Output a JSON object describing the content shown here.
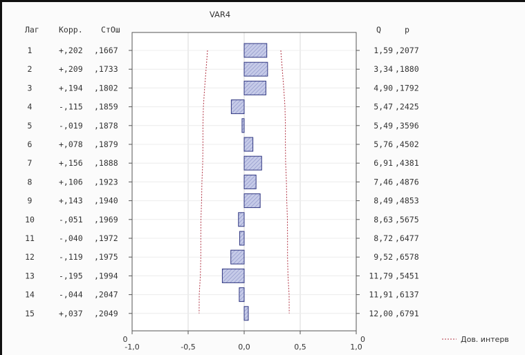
{
  "chart_data": {
    "type": "bar",
    "orientation": "horizontal",
    "title": "VAR4",
    "headers": {
      "lag": "Лаг",
      "corr": "Корр.",
      "se": "СтОш",
      "q": "Q",
      "p": "p"
    },
    "rows": [
      {
        "lag": "1",
        "corr_label": "+,202",
        "se_label": ",1667",
        "q_label": "1,59",
        "p_label": ",2077",
        "value": 0.202,
        "conf": 0.327
      },
      {
        "lag": "2",
        "corr_label": "+,209",
        "se_label": ",1733",
        "q_label": "3,34",
        "p_label": ",1880",
        "value": 0.209,
        "conf": 0.34
      },
      {
        "lag": "3",
        "corr_label": "+,194",
        "se_label": ",1802",
        "q_label": "4,90",
        "p_label": ",1792",
        "value": 0.194,
        "conf": 0.353
      },
      {
        "lag": "4",
        "corr_label": "-,115",
        "se_label": ",1859",
        "q_label": "5,47",
        "p_label": ",2425",
        "value": -0.115,
        "conf": 0.364
      },
      {
        "lag": "5",
        "corr_label": "-,019",
        "se_label": ",1878",
        "q_label": "5,49",
        "p_label": ",3596",
        "value": -0.019,
        "conf": 0.368
      },
      {
        "lag": "6",
        "corr_label": "+,078",
        "se_label": ",1879",
        "q_label": "5,76",
        "p_label": ",4502",
        "value": 0.078,
        "conf": 0.368
      },
      {
        "lag": "7",
        "corr_label": "+,156",
        "se_label": ",1888",
        "q_label": "6,91",
        "p_label": ",4381",
        "value": 0.156,
        "conf": 0.37
      },
      {
        "lag": "8",
        "corr_label": "+,106",
        "se_label": ",1923",
        "q_label": "7,46",
        "p_label": ",4876",
        "value": 0.106,
        "conf": 0.377
      },
      {
        "lag": "9",
        "corr_label": "+,143",
        "se_label": ",1940",
        "q_label": "8,49",
        "p_label": ",4853",
        "value": 0.143,
        "conf": 0.38
      },
      {
        "lag": "10",
        "corr_label": "-,051",
        "se_label": ",1969",
        "q_label": "8,63",
        "p_label": ",5675",
        "value": -0.051,
        "conf": 0.386
      },
      {
        "lag": "11",
        "corr_label": "-,040",
        "se_label": ",1972",
        "q_label": "8,72",
        "p_label": ",6477",
        "value": -0.04,
        "conf": 0.387
      },
      {
        "lag": "12",
        "corr_label": "-,119",
        "se_label": ",1975",
        "q_label": "9,52",
        "p_label": ",6578",
        "value": -0.119,
        "conf": 0.387
      },
      {
        "lag": "13",
        "corr_label": "-,195",
        "se_label": ",1994",
        "q_label": "11,79",
        "p_label": ",5451",
        "value": -0.195,
        "conf": 0.391
      },
      {
        "lag": "14",
        "corr_label": "-,044",
        "se_label": ",2047",
        "q_label": "11,91",
        "p_label": ",6137",
        "value": -0.044,
        "conf": 0.401
      },
      {
        "lag": "15",
        "corr_label": "+,037",
        "se_label": ",2049",
        "q_label": "12,00",
        "p_label": ",6791",
        "value": 0.037,
        "conf": 0.402
      }
    ],
    "x_ticks": [
      "-1,0",
      "-0,5",
      "0,0",
      "0,5",
      "1,0"
    ],
    "x_tick_values": [
      -1.0,
      -0.5,
      0.0,
      0.5,
      1.0
    ],
    "xlim": [
      -1.0,
      1.0
    ],
    "bottom_zero_left": "0",
    "bottom_zero_right": "0",
    "legend": {
      "label": "Дов. интерв",
      "placement": "bottom-right"
    },
    "grid": true,
    "colors": {
      "bar_fill": "#b9bfe0",
      "bar_stroke": "#2e3580",
      "conf_line": "#b03040",
      "axis": "#555555",
      "grid": "#d8d8d8"
    }
  }
}
